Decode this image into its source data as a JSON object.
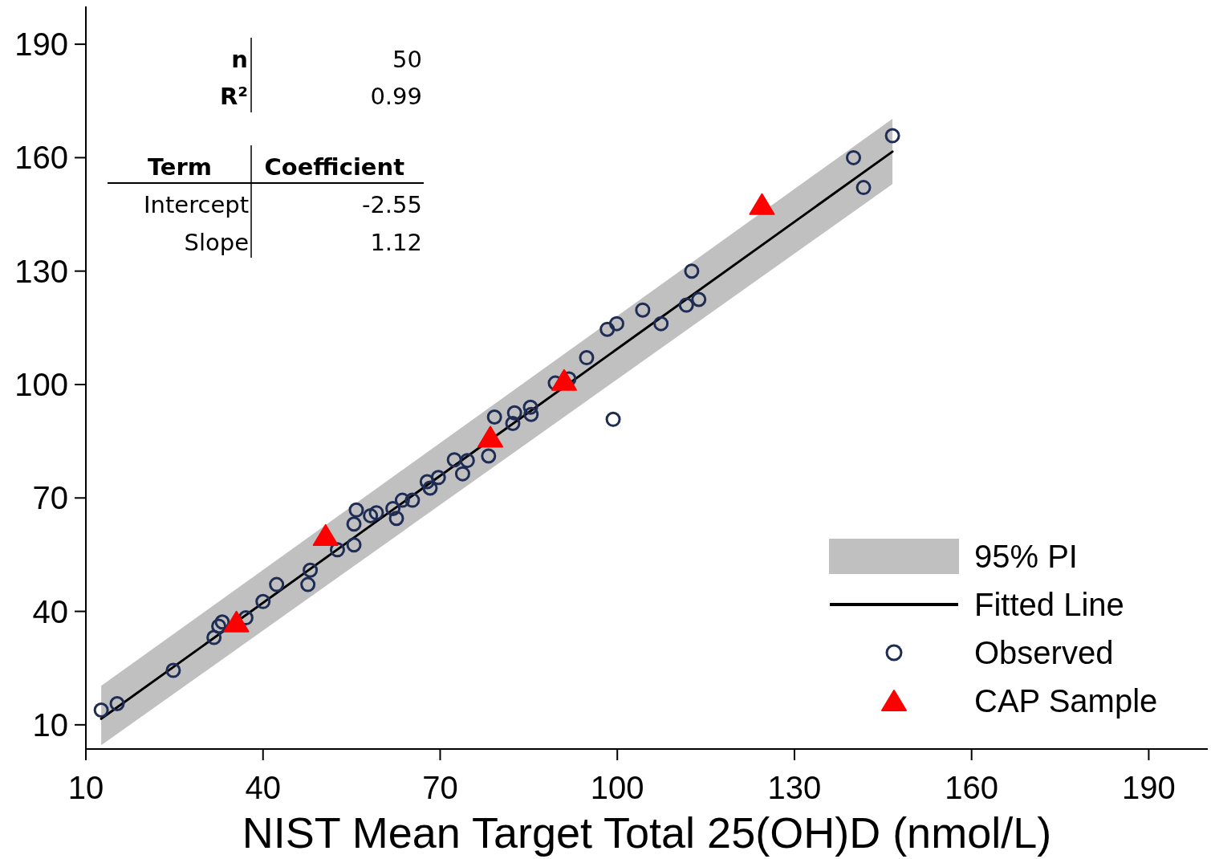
{
  "chart_data": {
    "type": "scatter",
    "xlabel": "NIST Mean Target Total 25(OH)D (nmol/L)",
    "xlim": [
      10,
      200
    ],
    "ylim": [
      3.6,
      200
    ],
    "xticks": [
      10,
      40,
      70,
      100,
      130,
      160,
      190
    ],
    "yticks": [
      10,
      40,
      70,
      100,
      130,
      160,
      190
    ],
    "grid": false,
    "legend": "bottom right",
    "annotations": [
      "n",
      "50",
      "R²",
      "0.99",
      "Term",
      "Coefficient",
      "Intercept",
      "-2.55",
      "Slope",
      "1.12",
      "95% PI"
    ],
    "series": [
      {
        "name": "Fitted Line",
        "type": "line",
        "color": "#000000",
        "line_style": "solid",
        "marker": "none",
        "x": [
          12.6,
          146.6
        ],
        "values": [
          11.6,
          161.6
        ],
        "lower": [
          4.6,
          153.0
        ],
        "upper": [
          20.3,
          170.3
        ]
      },
      {
        "name": "Observed",
        "color": "#1f2d55",
        "marker": "circle",
        "x": [
          12.6,
          15.3,
          24.8,
          31.7,
          32.5,
          33.1,
          37.1,
          40.0,
          42.3,
          47.6,
          48.0,
          52.6,
          55.4,
          55.4,
          55.8,
          58.2,
          59.2,
          62.0,
          62.6,
          63.6,
          65.3,
          67.8,
          68.3,
          69.7,
          72.4,
          73.8,
          74.6,
          78.2,
          79.2,
          82.6,
          82.3,
          85.3,
          85.4,
          89.5,
          91.8,
          94.8,
          99.3,
          98.3,
          99.9,
          104.3,
          107.4,
          111.7,
          113.8,
          112.6,
          140.0,
          141.7,
          146.6
        ],
        "values": [
          13.9,
          15.6,
          24.4,
          33.1,
          36.1,
          37.2,
          38.3,
          42.6,
          47.1,
          47.1,
          50.9,
          56.3,
          57.6,
          63.1,
          66.8,
          65.3,
          66.1,
          67.2,
          64.6,
          69.4,
          69.4,
          74.3,
          72.6,
          75.4,
          80.1,
          76.4,
          79.9,
          81.1,
          91.4,
          92.5,
          89.7,
          94.0,
          92.1,
          100.4,
          101.5,
          107.1,
          90.8,
          114.6,
          116.1,
          119.7,
          116.1,
          121.0,
          122.5,
          130.0,
          160.0,
          152.1,
          165.8
        ]
      },
      {
        "name": "CAP Sample",
        "color": "#ff0000",
        "marker": "triangle",
        "x": [
          35.5,
          50.6,
          78.5,
          91.0,
          124.5
        ],
        "values": [
          37.2,
          60.1,
          86.1,
          101.1,
          147.6
        ]
      }
    ]
  }
}
